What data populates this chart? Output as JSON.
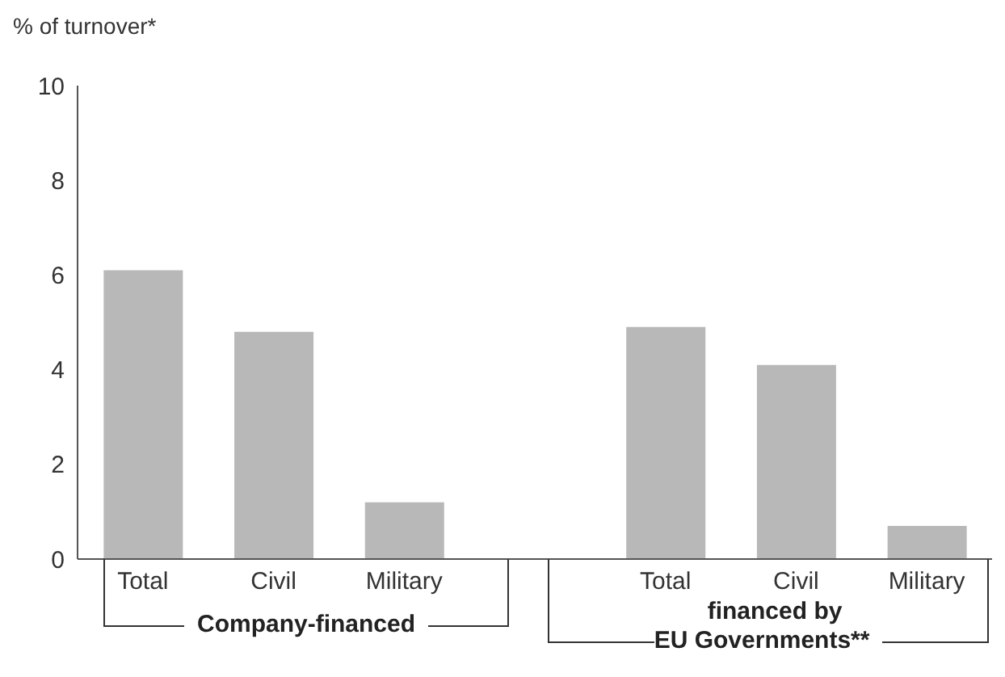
{
  "chart_data": {
    "type": "bar",
    "ylabel": "% of turnover*",
    "categories": [
      "Total",
      "Civil",
      "Military",
      null,
      "Total",
      "Civil",
      "Military"
    ],
    "values": [
      6.1,
      4.8,
      1.2,
      null,
      4.9,
      4.1,
      0.7
    ],
    "color": "#b8b8b8",
    "ylim": [
      0,
      10
    ],
    "yticks": [
      0,
      2,
      4,
      6,
      8,
      10
    ],
    "annotations": [
      "Company-financed",
      "financed by\nEU Governments**"
    ]
  }
}
